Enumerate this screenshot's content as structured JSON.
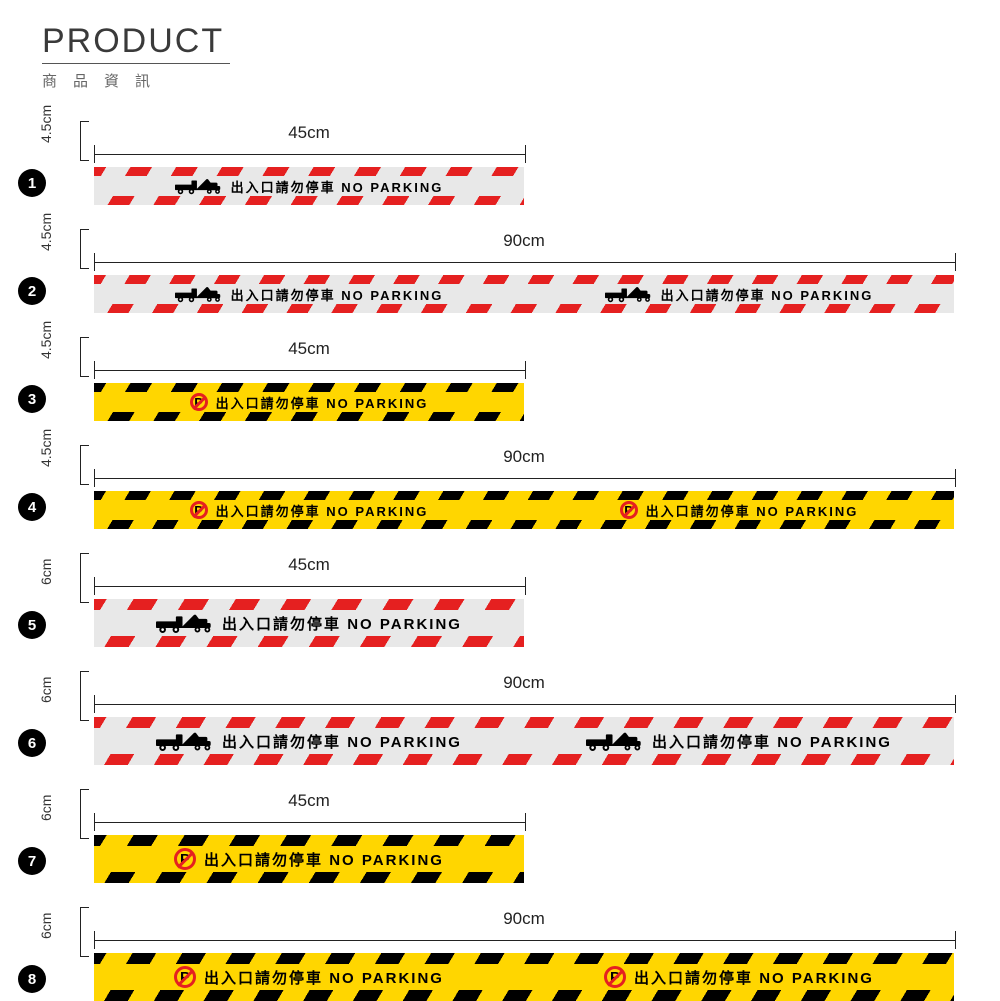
{
  "header": {
    "title": "PRODUCT",
    "subtitle": "商品資訊"
  },
  "tape_text": "出入口請勿停車 NO PARKING",
  "width_labels": {
    "short": "45cm",
    "long": "90cm"
  },
  "height_labels": {
    "thin": "4.5cm",
    "thick": "6cm"
  },
  "colors": {
    "grey_bg": "#e8e8e8",
    "grey_stripe": "#e52020",
    "yellow_bg": "#ffd600",
    "yellow_stripe": "#000000",
    "badge_bg": "#000000",
    "badge_fg": "#ffffff",
    "text": "#222222",
    "nop_ring": "#e52020"
  },
  "items": [
    {
      "n": "1",
      "style": "grey",
      "icon": "tow",
      "len": "short",
      "h": "thin"
    },
    {
      "n": "2",
      "style": "grey",
      "icon": "tow",
      "len": "long",
      "h": "thin"
    },
    {
      "n": "3",
      "style": "yellow",
      "icon": "nop",
      "len": "short",
      "h": "thin"
    },
    {
      "n": "4",
      "style": "yellow",
      "icon": "nop",
      "len": "long",
      "h": "thin"
    },
    {
      "n": "5",
      "style": "grey",
      "icon": "tow",
      "len": "short",
      "h": "thick"
    },
    {
      "n": "6",
      "style": "grey",
      "icon": "tow",
      "len": "long",
      "h": "thick"
    },
    {
      "n": "7",
      "style": "yellow",
      "icon": "nop",
      "len": "short",
      "h": "thick"
    },
    {
      "n": "8",
      "style": "yellow",
      "icon": "nop",
      "len": "long",
      "h": "thick"
    }
  ]
}
